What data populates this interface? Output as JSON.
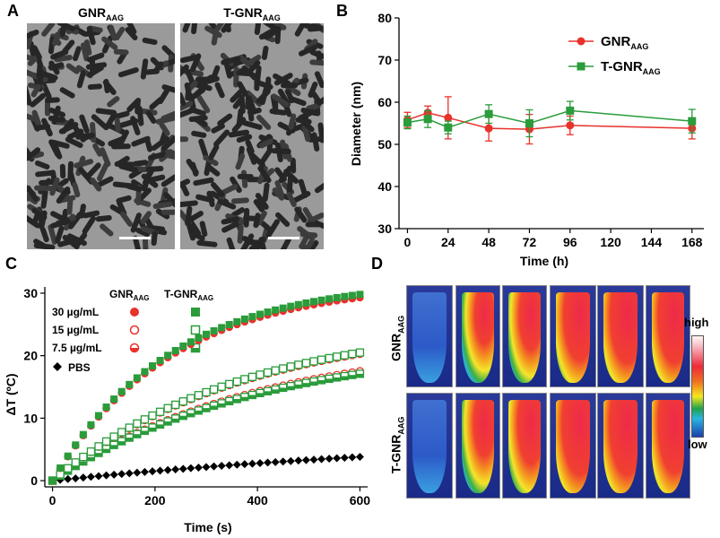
{
  "panels": {
    "a": "A",
    "b": "B",
    "c": "C",
    "d": "D"
  },
  "panel_a": {
    "left_title_main": "GNR",
    "left_title_sub": "AAG",
    "right_title_main": "T-GNR",
    "right_title_sub": "AAG"
  },
  "chart_data": [
    {
      "type": "line",
      "panel": "B",
      "xlabel": "Time (h)",
      "ylabel": "Diameter (nm)",
      "xlim": [
        -5,
        175
      ],
      "ylim": [
        30,
        80
      ],
      "xticks": [
        0,
        24,
        48,
        72,
        96,
        120,
        144,
        168
      ],
      "yticks": [
        30,
        40,
        50,
        60,
        70,
        80
      ],
      "x": [
        0,
        12,
        24,
        48,
        72,
        96,
        168
      ],
      "series": [
        {
          "name": "GNR",
          "name_sub": "AAG",
          "color": "#e8322c",
          "marker": "circle",
          "values": [
            55.8,
            57.5,
            56.3,
            53.8,
            53.6,
            54.5,
            53.8
          ],
          "errors": [
            1.8,
            1.6,
            5.0,
            3.0,
            3.5,
            2.2,
            2.5
          ]
        },
        {
          "name": "T-GNR",
          "name_sub": "AAG",
          "color": "#2a9c3b",
          "marker": "square",
          "values": [
            55.2,
            56.0,
            54.0,
            57.2,
            55.0,
            58.0,
            55.5
          ],
          "errors": [
            1.5,
            2.0,
            1.5,
            2.2,
            3.2,
            2.2,
            2.8
          ]
        }
      ]
    },
    {
      "type": "scatter",
      "panel": "C",
      "xlabel": "Time (s)",
      "ylabel": "ΔT (ºC)",
      "xlim": [
        -15,
        615
      ],
      "ylim": [
        -1,
        31
      ],
      "xticks": [
        0,
        200,
        400,
        600
      ],
      "yticks": [
        0,
        10,
        20,
        30
      ],
      "legend_header_1_main": "GNR",
      "legend_header_1_sub": "AAG",
      "legend_header_2_main": "T-GNR",
      "legend_header_2_sub": "AAG",
      "x_step": 15,
      "x_max": 600,
      "series": [
        {
          "name": "30 µg/mL",
          "group": "GNR",
          "color": "#e8322c",
          "marker": "filled-circle",
          "final": 29.3,
          "rate": 2.6
        },
        {
          "name": "30 µg/mL",
          "group": "T-GNR",
          "color": "#2a9c3b",
          "marker": "filled-square",
          "final": 29.8,
          "rate": 2.6
        },
        {
          "name": "15 µg/mL",
          "group": "GNR",
          "color": "#e8322c",
          "marker": "open-circle",
          "final": 20.3,
          "rate": 1.6
        },
        {
          "name": "15 µg/mL",
          "group": "T-GNR",
          "color": "#2a9c3b",
          "marker": "open-square",
          "final": 20.5,
          "rate": 1.6
        },
        {
          "name": "7.5 µg/mL",
          "group": "GNR",
          "color": "#e8322c",
          "marker": "half-circle",
          "final": 17.5,
          "rate": 1.5
        },
        {
          "name": "7.5 µg/mL",
          "group": "T-GNR",
          "color": "#2a9c3b",
          "marker": "half-square",
          "final": 17.1,
          "rate": 1.5
        },
        {
          "name": "PBS",
          "group": "",
          "color": "#000000",
          "marker": "diamond",
          "final": 3.8,
          "rate": 0.6
        }
      ],
      "legend_rows": [
        "30 µg/mL",
        "15 µg/mL",
        "7.5 µg/mL",
        "PBS"
      ]
    }
  ],
  "panel_d": {
    "row1_label_main": "GNR",
    "row1_label_sub": "AAG",
    "row2_label_main": "T-GNR",
    "row2_label_sub": "AAG",
    "colorbar_high": "high",
    "colorbar_low": "low",
    "tube_heat_levels_row1": [
      0.1,
      0.55,
      0.65,
      0.85,
      0.9,
      0.9
    ],
    "tube_heat_levels_row2": [
      0.1,
      0.6,
      0.75,
      0.95,
      0.95,
      0.9
    ]
  }
}
